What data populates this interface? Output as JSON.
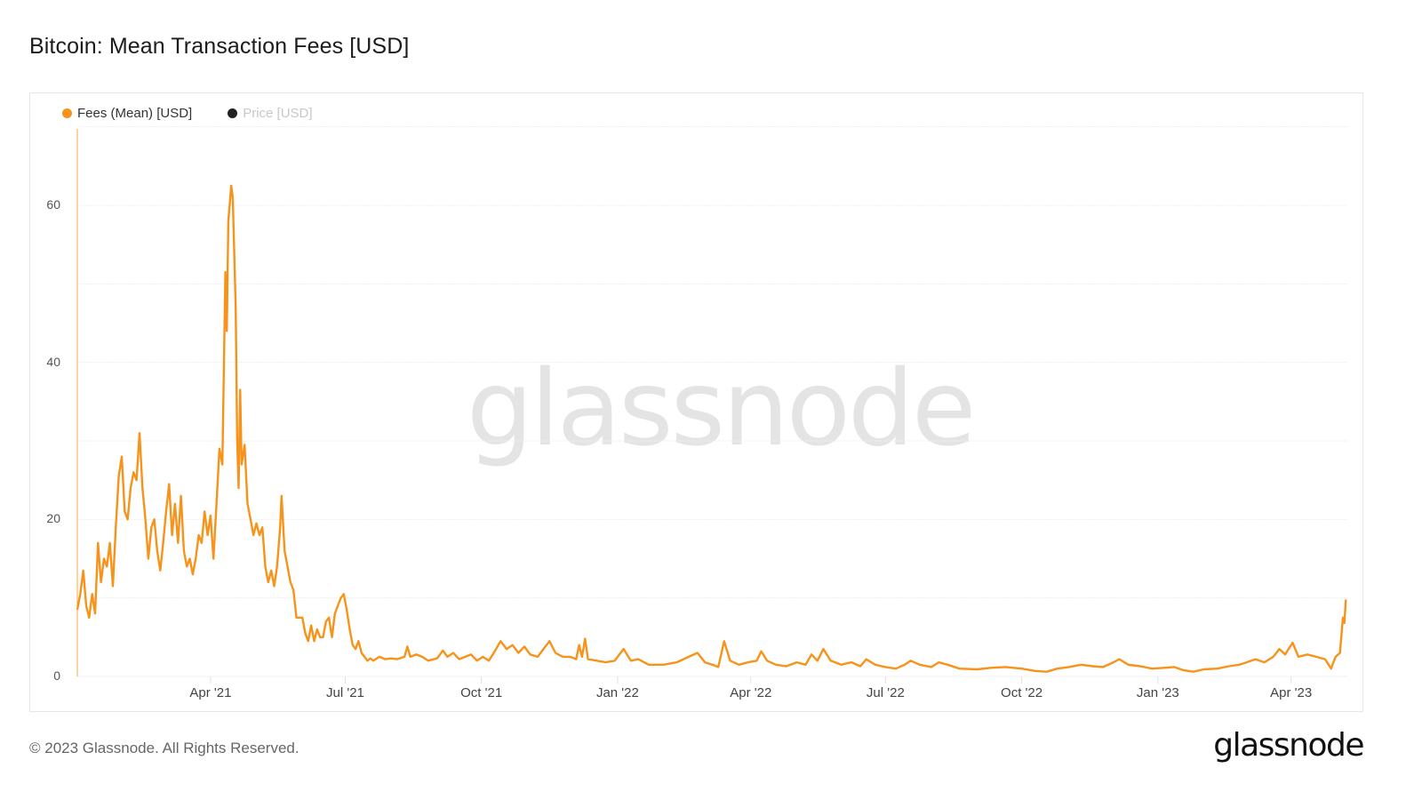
{
  "header": {
    "title": "Bitcoin: Mean Transaction Fees [USD]"
  },
  "legend": {
    "items": [
      {
        "label": "Fees (Mean) [USD]",
        "color": "#f7931a",
        "active": true
      },
      {
        "label": "Price [USD]",
        "color": "#222222",
        "active": false
      }
    ]
  },
  "watermark": "glassnode",
  "footer": {
    "copyright": "© 2023 Glassnode. All Rights Reserved.",
    "brand": "glassnode"
  },
  "chart_data": {
    "type": "line",
    "title": "Bitcoin: Mean Transaction Fees [USD]",
    "xlabel": "",
    "ylabel": "",
    "ylim": [
      0,
      70
    ],
    "yticks": [
      0,
      20,
      40,
      60
    ],
    "xticks": [
      "Apr '21",
      "Jul '21",
      "Oct '21",
      "Jan '22",
      "Apr '22",
      "Jul '22",
      "Oct '22",
      "Jan '23",
      "Apr '23"
    ],
    "grid": true,
    "legend_position": "top-left",
    "series": [
      {
        "name": "Fees (Mean) [USD]",
        "color": "#f7931a",
        "points": [
          [
            "2021-01-01",
            8.5
          ],
          [
            "2021-01-03",
            10.5
          ],
          [
            "2021-01-05",
            13.5
          ],
          [
            "2021-01-07",
            9.0
          ],
          [
            "2021-01-09",
            7.5
          ],
          [
            "2021-01-11",
            10.5
          ],
          [
            "2021-01-13",
            8.0
          ],
          [
            "2021-01-15",
            17.0
          ],
          [
            "2021-01-17",
            12.0
          ],
          [
            "2021-01-19",
            15.0
          ],
          [
            "2021-01-21",
            14.0
          ],
          [
            "2021-01-23",
            17.0
          ],
          [
            "2021-01-25",
            11.5
          ],
          [
            "2021-01-27",
            19.0
          ],
          [
            "2021-01-29",
            25.5
          ],
          [
            "2021-01-31",
            28.0
          ],
          [
            "2021-02-02",
            21.0
          ],
          [
            "2021-02-04",
            20.0
          ],
          [
            "2021-02-06",
            24.0
          ],
          [
            "2021-02-08",
            26.0
          ],
          [
            "2021-02-10",
            25.0
          ],
          [
            "2021-02-12",
            31.0
          ],
          [
            "2021-02-14",
            24.0
          ],
          [
            "2021-02-16",
            20.0
          ],
          [
            "2021-02-18",
            15.0
          ],
          [
            "2021-02-20",
            19.0
          ],
          [
            "2021-02-22",
            20.0
          ],
          [
            "2021-02-24",
            16.0
          ],
          [
            "2021-02-26",
            13.5
          ],
          [
            "2021-02-28",
            17.0
          ],
          [
            "2021-03-02",
            21.0
          ],
          [
            "2021-03-04",
            24.5
          ],
          [
            "2021-03-06",
            18.0
          ],
          [
            "2021-03-08",
            22.0
          ],
          [
            "2021-03-10",
            17.0
          ],
          [
            "2021-03-12",
            23.0
          ],
          [
            "2021-03-14",
            16.0
          ],
          [
            "2021-03-16",
            14.0
          ],
          [
            "2021-03-18",
            15.0
          ],
          [
            "2021-03-20",
            13.0
          ],
          [
            "2021-03-22",
            15.0
          ],
          [
            "2021-03-24",
            18.0
          ],
          [
            "2021-03-26",
            17.0
          ],
          [
            "2021-03-28",
            21.0
          ],
          [
            "2021-03-30",
            18.0
          ],
          [
            "2021-04-01",
            20.5
          ],
          [
            "2021-04-03",
            15.0
          ],
          [
            "2021-04-05",
            22.0
          ],
          [
            "2021-04-07",
            29.0
          ],
          [
            "2021-04-09",
            27.0
          ],
          [
            "2021-04-11",
            51.5
          ],
          [
            "2021-04-12",
            44.0
          ],
          [
            "2021-04-13",
            58.0
          ],
          [
            "2021-04-15",
            62.5
          ],
          [
            "2021-04-16",
            61.0
          ],
          [
            "2021-04-18",
            47.0
          ],
          [
            "2021-04-19",
            30.0
          ],
          [
            "2021-04-20",
            24.0
          ],
          [
            "2021-04-21",
            36.5
          ],
          [
            "2021-04-22",
            27.0
          ],
          [
            "2021-04-24",
            29.5
          ],
          [
            "2021-04-26",
            22.0
          ],
          [
            "2021-04-28",
            20.0
          ],
          [
            "2021-04-30",
            18.0
          ],
          [
            "2021-05-02",
            19.5
          ],
          [
            "2021-05-04",
            18.0
          ],
          [
            "2021-05-06",
            19.0
          ],
          [
            "2021-05-08",
            14.0
          ],
          [
            "2021-05-10",
            12.0
          ],
          [
            "2021-05-12",
            13.5
          ],
          [
            "2021-05-14",
            11.5
          ],
          [
            "2021-05-16",
            14.0
          ],
          [
            "2021-05-18",
            19.0
          ],
          [
            "2021-05-19",
            23.0
          ],
          [
            "2021-05-21",
            16.0
          ],
          [
            "2021-05-23",
            14.0
          ],
          [
            "2021-05-25",
            12.0
          ],
          [
            "2021-05-27",
            11.0
          ],
          [
            "2021-05-29",
            7.5
          ],
          [
            "2021-05-31",
            7.5
          ],
          [
            "2021-06-02",
            7.5
          ],
          [
            "2021-06-04",
            5.5
          ],
          [
            "2021-06-06",
            4.5
          ],
          [
            "2021-06-08",
            6.5
          ],
          [
            "2021-06-10",
            4.5
          ],
          [
            "2021-06-12",
            6.0
          ],
          [
            "2021-06-14",
            5.0
          ],
          [
            "2021-06-16",
            5.0
          ],
          [
            "2021-06-18",
            7.0
          ],
          [
            "2021-06-20",
            7.5
          ],
          [
            "2021-06-22",
            5.0
          ],
          [
            "2021-06-24",
            8.0
          ],
          [
            "2021-06-26",
            9.0
          ],
          [
            "2021-06-28",
            10.0
          ],
          [
            "2021-06-30",
            10.5
          ],
          [
            "2021-07-02",
            8.5
          ],
          [
            "2021-07-04",
            6.0
          ],
          [
            "2021-07-06",
            4.0
          ],
          [
            "2021-07-08",
            3.5
          ],
          [
            "2021-07-10",
            4.5
          ],
          [
            "2021-07-12",
            3.0
          ],
          [
            "2021-07-14",
            2.5
          ],
          [
            "2021-07-16",
            2.0
          ],
          [
            "2021-07-18",
            2.3
          ],
          [
            "2021-07-20",
            2.0
          ],
          [
            "2021-07-24",
            2.5
          ],
          [
            "2021-07-28",
            2.2
          ],
          [
            "2021-08-01",
            2.3
          ],
          [
            "2021-08-05",
            2.2
          ],
          [
            "2021-08-10",
            2.5
          ],
          [
            "2021-08-12",
            3.8
          ],
          [
            "2021-08-14",
            2.5
          ],
          [
            "2021-08-18",
            2.8
          ],
          [
            "2021-08-22",
            2.5
          ],
          [
            "2021-08-26",
            2.0
          ],
          [
            "2021-09-01",
            2.3
          ],
          [
            "2021-09-05",
            3.3
          ],
          [
            "2021-09-08",
            2.5
          ],
          [
            "2021-09-12",
            3.0
          ],
          [
            "2021-09-16",
            2.2
          ],
          [
            "2021-09-20",
            2.5
          ],
          [
            "2021-09-24",
            2.8
          ],
          [
            "2021-09-28",
            2.0
          ],
          [
            "2021-10-02",
            2.5
          ],
          [
            "2021-10-06",
            2.0
          ],
          [
            "2021-10-10",
            3.2
          ],
          [
            "2021-10-14",
            4.5
          ],
          [
            "2021-10-18",
            3.5
          ],
          [
            "2021-10-22",
            4.0
          ],
          [
            "2021-10-26",
            3.0
          ],
          [
            "2021-10-30",
            3.8
          ],
          [
            "2021-11-03",
            2.8
          ],
          [
            "2021-11-08",
            2.5
          ],
          [
            "2021-11-12",
            3.5
          ],
          [
            "2021-11-16",
            4.5
          ],
          [
            "2021-11-20",
            3.0
          ],
          [
            "2021-11-25",
            2.5
          ],
          [
            "2021-11-30",
            2.5
          ],
          [
            "2021-12-04",
            2.2
          ],
          [
            "2021-12-06",
            4.0
          ],
          [
            "2021-12-08",
            2.5
          ],
          [
            "2021-12-10",
            4.8
          ],
          [
            "2021-12-12",
            2.2
          ],
          [
            "2021-12-18",
            2.0
          ],
          [
            "2021-12-24",
            1.8
          ],
          [
            "2021-12-30",
            2.0
          ],
          [
            "2022-01-05",
            3.5
          ],
          [
            "2022-01-10",
            2.0
          ],
          [
            "2022-01-15",
            2.2
          ],
          [
            "2022-01-22",
            1.5
          ],
          [
            "2022-02-01",
            1.5
          ],
          [
            "2022-02-10",
            1.8
          ],
          [
            "2022-02-18",
            2.5
          ],
          [
            "2022-02-24",
            3.0
          ],
          [
            "2022-03-01",
            1.8
          ],
          [
            "2022-03-06",
            1.5
          ],
          [
            "2022-03-10",
            1.2
          ],
          [
            "2022-03-14",
            4.5
          ],
          [
            "2022-03-18",
            2.0
          ],
          [
            "2022-03-24",
            1.5
          ],
          [
            "2022-03-30",
            1.8
          ],
          [
            "2022-04-05",
            2.0
          ],
          [
            "2022-04-08",
            3.2
          ],
          [
            "2022-04-12",
            2.0
          ],
          [
            "2022-04-18",
            1.5
          ],
          [
            "2022-04-25",
            1.3
          ],
          [
            "2022-05-02",
            1.8
          ],
          [
            "2022-05-08",
            1.5
          ],
          [
            "2022-05-12",
            2.8
          ],
          [
            "2022-05-16",
            2.0
          ],
          [
            "2022-05-20",
            3.5
          ],
          [
            "2022-05-25",
            2.0
          ],
          [
            "2022-06-01",
            1.5
          ],
          [
            "2022-06-08",
            1.8
          ],
          [
            "2022-06-14",
            1.3
          ],
          [
            "2022-06-18",
            2.2
          ],
          [
            "2022-06-24",
            1.5
          ],
          [
            "2022-07-01",
            1.2
          ],
          [
            "2022-07-08",
            1.0
          ],
          [
            "2022-07-14",
            1.5
          ],
          [
            "2022-07-18",
            2.0
          ],
          [
            "2022-07-24",
            1.5
          ],
          [
            "2022-08-01",
            1.2
          ],
          [
            "2022-08-06",
            1.8
          ],
          [
            "2022-08-12",
            1.5
          ],
          [
            "2022-08-20",
            1.0
          ],
          [
            "2022-09-01",
            0.9
          ],
          [
            "2022-09-10",
            1.1
          ],
          [
            "2022-09-20",
            1.2
          ],
          [
            "2022-10-01",
            1.0
          ],
          [
            "2022-10-10",
            0.7
          ],
          [
            "2022-10-18",
            0.6
          ],
          [
            "2022-10-25",
            1.0
          ],
          [
            "2022-11-02",
            1.2
          ],
          [
            "2022-11-10",
            1.5
          ],
          [
            "2022-11-18",
            1.3
          ],
          [
            "2022-11-25",
            1.2
          ],
          [
            "2022-12-02",
            1.8
          ],
          [
            "2022-12-06",
            2.2
          ],
          [
            "2022-12-12",
            1.5
          ],
          [
            "2022-12-20",
            1.3
          ],
          [
            "2022-12-28",
            1.0
          ],
          [
            "2023-01-05",
            1.1
          ],
          [
            "2023-01-12",
            1.2
          ],
          [
            "2023-01-18",
            0.8
          ],
          [
            "2023-01-25",
            0.6
          ],
          [
            "2023-02-01",
            0.9
          ],
          [
            "2023-02-10",
            1.0
          ],
          [
            "2023-02-18",
            1.3
          ],
          [
            "2023-02-25",
            1.5
          ],
          [
            "2023-03-02",
            1.8
          ],
          [
            "2023-03-08",
            2.2
          ],
          [
            "2023-03-14",
            1.8
          ],
          [
            "2023-03-20",
            2.5
          ],
          [
            "2023-03-24",
            3.5
          ],
          [
            "2023-03-28",
            2.8
          ],
          [
            "2023-04-02",
            4.3
          ],
          [
            "2023-04-06",
            2.5
          ],
          [
            "2023-04-12",
            2.8
          ],
          [
            "2023-04-18",
            2.5
          ],
          [
            "2023-04-24",
            2.2
          ],
          [
            "2023-04-28",
            1.0
          ],
          [
            "2023-05-01",
            2.5
          ],
          [
            "2023-05-04",
            3.0
          ],
          [
            "2023-05-06",
            7.5
          ],
          [
            "2023-05-07",
            6.8
          ],
          [
            "2023-05-08",
            9.8
          ]
        ]
      },
      {
        "name": "Price [USD]",
        "color": "#222222",
        "hidden": true,
        "points": []
      }
    ]
  }
}
